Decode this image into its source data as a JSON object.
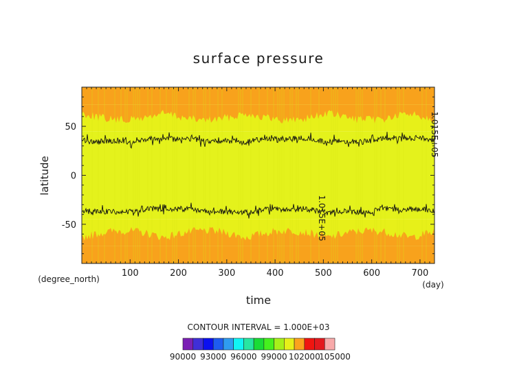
{
  "chart_data": {
    "type": "heatmap",
    "title": "surface pressure",
    "xlabel": "time",
    "ylabel": "latitude",
    "x_unit": "(day)",
    "y_unit": "(degree_north)",
    "xlim": [
      0,
      730
    ],
    "ylim": [
      -90,
      90
    ],
    "x_ticks": [
      100,
      200,
      300,
      400,
      500,
      600,
      700
    ],
    "y_ticks": [
      50,
      0,
      -50
    ],
    "contour_interval_label": "CONTOUR INTERVAL = 1.000E+03",
    "colorbar": {
      "levels": [
        90000,
        91000,
        92000,
        93000,
        94000,
        95000,
        96000,
        97000,
        98000,
        99000,
        100000,
        101000,
        102000,
        103000,
        104000,
        105000
      ],
      "colors": [
        "#7a1fb4",
        "#3f2fd8",
        "#0b10f0",
        "#1e5cf0",
        "#2f9cf0",
        "#11f4f4",
        "#27e6a2",
        "#19dc36",
        "#45f01e",
        "#a6f01a",
        "#e7f019",
        "#fca31d",
        "#f01510",
        "#e3191e",
        "#f8aaaa"
      ],
      "tick_labels": [
        "90000",
        "93000",
        "96000",
        "99000",
        "102000",
        "105000"
      ]
    },
    "bands": [
      {
        "lat_from": 90,
        "lat_to": 72,
        "level": 101000,
        "color": "#f8a21c"
      },
      {
        "lat_from": 72,
        "lat_to": 45,
        "level": 101000,
        "color": "#e7f019"
      },
      {
        "lat_from": 45,
        "lat_to": -45,
        "level": 101000,
        "color": "#e4f21c"
      },
      {
        "lat_from": -45,
        "lat_to": -72,
        "level": 101000,
        "color": "#e7f019"
      },
      {
        "lat_from": -72,
        "lat_to": -90,
        "level": 101000,
        "color": "#f8a21c"
      }
    ],
    "contours": [
      {
        "value": 101500,
        "mean_lat": 36
      },
      {
        "value": 101500,
        "mean_lat": -36
      }
    ],
    "contour_labels": [
      "1.015E+05"
    ]
  }
}
